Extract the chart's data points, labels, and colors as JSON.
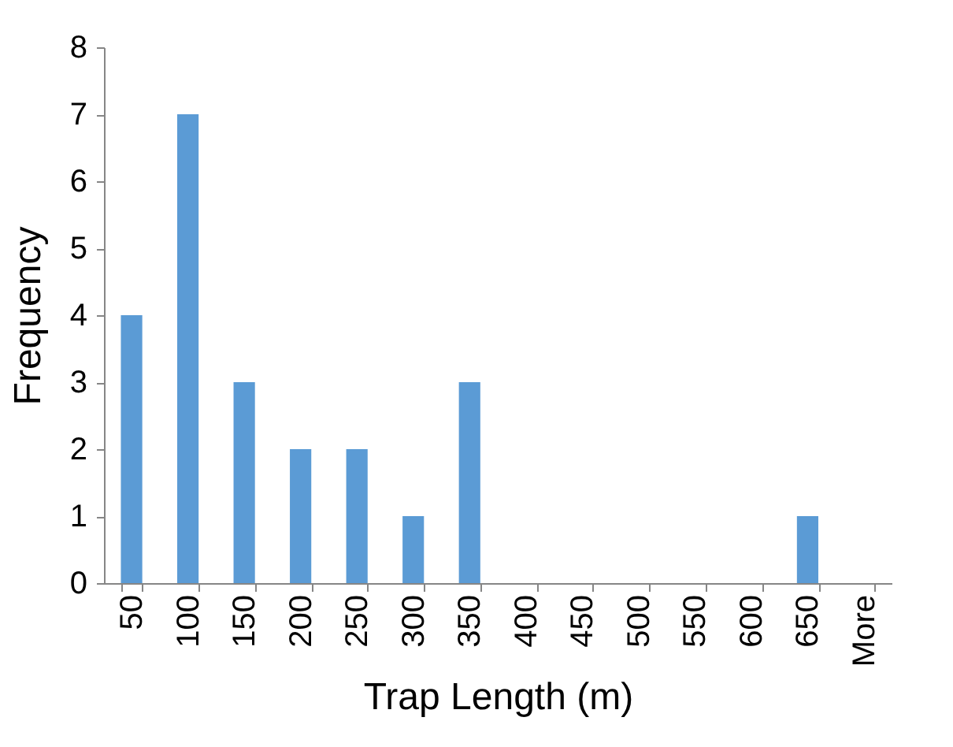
{
  "chart_data": {
    "type": "bar",
    "xlabel": "Trap Length (m)",
    "ylabel": "Frequency",
    "categories": [
      "50",
      "100",
      "150",
      "200",
      "250",
      "300",
      "350",
      "400",
      "450",
      "500",
      "550",
      "600",
      "650",
      "More"
    ],
    "values": [
      4,
      7,
      3,
      2,
      2,
      1,
      3,
      0,
      0,
      0,
      0,
      0,
      1,
      0
    ],
    "color": "#5b9bd5",
    "ylim": [
      0,
      8
    ],
    "yticks": [
      0,
      1,
      2,
      3,
      4,
      5,
      6,
      7,
      8
    ],
    "grid": false
  }
}
